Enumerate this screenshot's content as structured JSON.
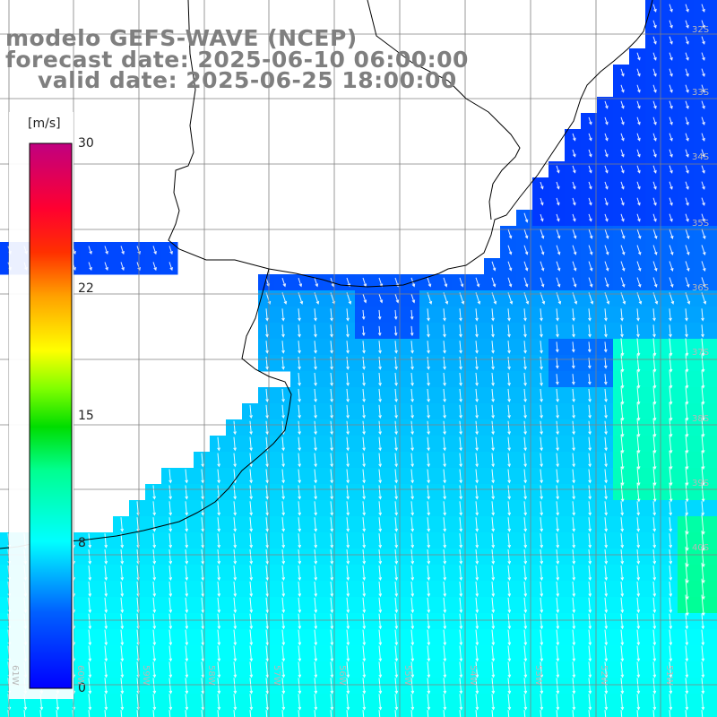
{
  "title": {
    "model": "modelo GEFS-WAVE (NCEP)",
    "forecast": "forecast date: 2025-06-10 06:00:00",
    "valid": "valid date: 2025-06-25 18:00:00"
  },
  "colorbar": {
    "units": "[m/s]",
    "ticks": [
      "30",
      "22",
      "15",
      "8",
      "0"
    ],
    "tick_values": [
      30,
      22,
      15,
      8,
      0
    ],
    "range": [
      0,
      30
    ]
  },
  "map": {
    "lat_labels": [
      "32S",
      "33S",
      "34S",
      "35S",
      "36S",
      "37S",
      "38S",
      "39S",
      "40S"
    ],
    "lon_labels": [
      "61W",
      "60W",
      "59W",
      "58W",
      "57W",
      "56W",
      "55W",
      "54W",
      "53W",
      "52W",
      "51W"
    ],
    "field": "wind speed",
    "colors": {
      "land": "#ffffff",
      "coastline": "#000000",
      "grid": "#808080",
      "vectors": "#ffffff",
      "title_text": "#7f7f7f"
    }
  }
}
